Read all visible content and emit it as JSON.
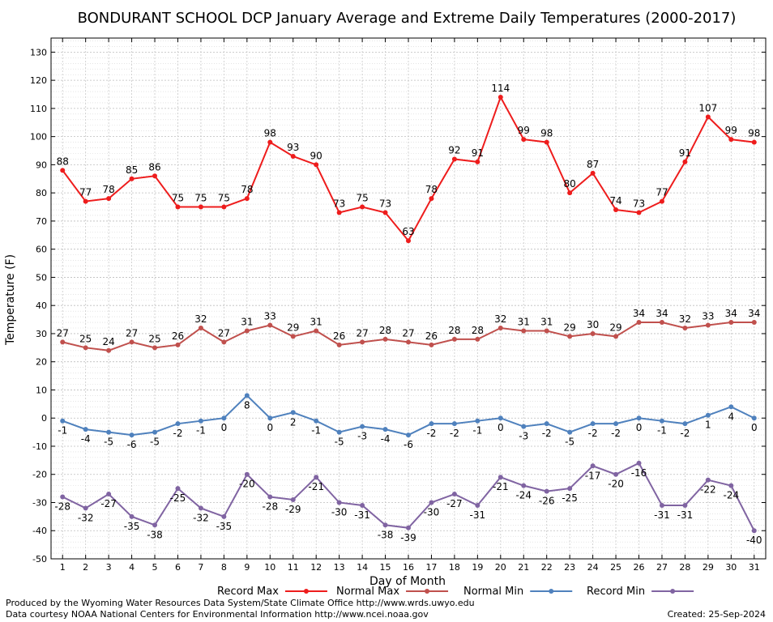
{
  "chart_data": {
    "type": "line",
    "title": "BONDURANT SCHOOL DCP January Average and Extreme Daily Temperatures (2000-2017)",
    "xlabel": "Day of Month",
    "ylabel": "Temperature (F)",
    "x": [
      1,
      2,
      3,
      4,
      5,
      6,
      7,
      8,
      9,
      10,
      11,
      12,
      13,
      14,
      15,
      16,
      17,
      18,
      19,
      20,
      21,
      22,
      23,
      24,
      25,
      26,
      27,
      28,
      29,
      30,
      31
    ],
    "xlim": [
      0.5,
      31.5
    ],
    "ylim": [
      -50,
      135
    ],
    "yticks": [
      -50,
      -40,
      -30,
      -20,
      -10,
      0,
      10,
      20,
      30,
      40,
      50,
      60,
      70,
      80,
      90,
      100,
      110,
      120,
      130
    ],
    "grid": true,
    "legend_position": "bottom",
    "series": [
      {
        "name": "Record Max",
        "color": "#ee1c1c",
        "values": [
          88,
          77,
          78,
          85,
          86,
          75,
          75,
          75,
          78,
          98,
          93,
          90,
          73,
          75,
          73,
          63,
          78,
          92,
          91,
          114,
          99,
          98,
          80,
          87,
          74,
          73,
          77,
          91,
          107,
          99,
          98
        ]
      },
      {
        "name": "Normal Max",
        "color": "#c0504d",
        "values": [
          27,
          25,
          24,
          27,
          25,
          26,
          32,
          27,
          31,
          33,
          29,
          31,
          26,
          27,
          28,
          27,
          26,
          28,
          28,
          32,
          31,
          31,
          29,
          30,
          29,
          34,
          34,
          32,
          33,
          34,
          34
        ]
      },
      {
        "name": "Normal Min",
        "color": "#4f81bd",
        "values": [
          -1,
          -4,
          -5,
          -6,
          -5,
          -2,
          -1,
          0,
          8,
          0,
          2,
          -1,
          -5,
          -3,
          -4,
          -6,
          -2,
          -2,
          -1,
          0,
          -3,
          -2,
          -5,
          -2,
          -2,
          0,
          -1,
          -2,
          1,
          4,
          0
        ]
      },
      {
        "name": "Record Min",
        "color": "#8064a2",
        "values": [
          -28,
          -32,
          -27,
          -35,
          -38,
          -25,
          -32,
          -35,
          -20,
          -28,
          -29,
          -21,
          -30,
          -31,
          -38,
          -39,
          -30,
          -27,
          -31,
          -21,
          -24,
          -26,
          -25,
          -17,
          -20,
          -16,
          -31,
          -31,
          -22,
          -24,
          -40
        ]
      }
    ]
  },
  "footer": {
    "produced_by": "Produced by the Wyoming Water Resources Data System/State Climate Office http://www.wrds.uwyo.edu",
    "courtesy": "Data courtesy NOAA National Centers for Environmental Information http://www.ncei.noaa.gov",
    "created": "Created:  25-Sep-2024"
  }
}
